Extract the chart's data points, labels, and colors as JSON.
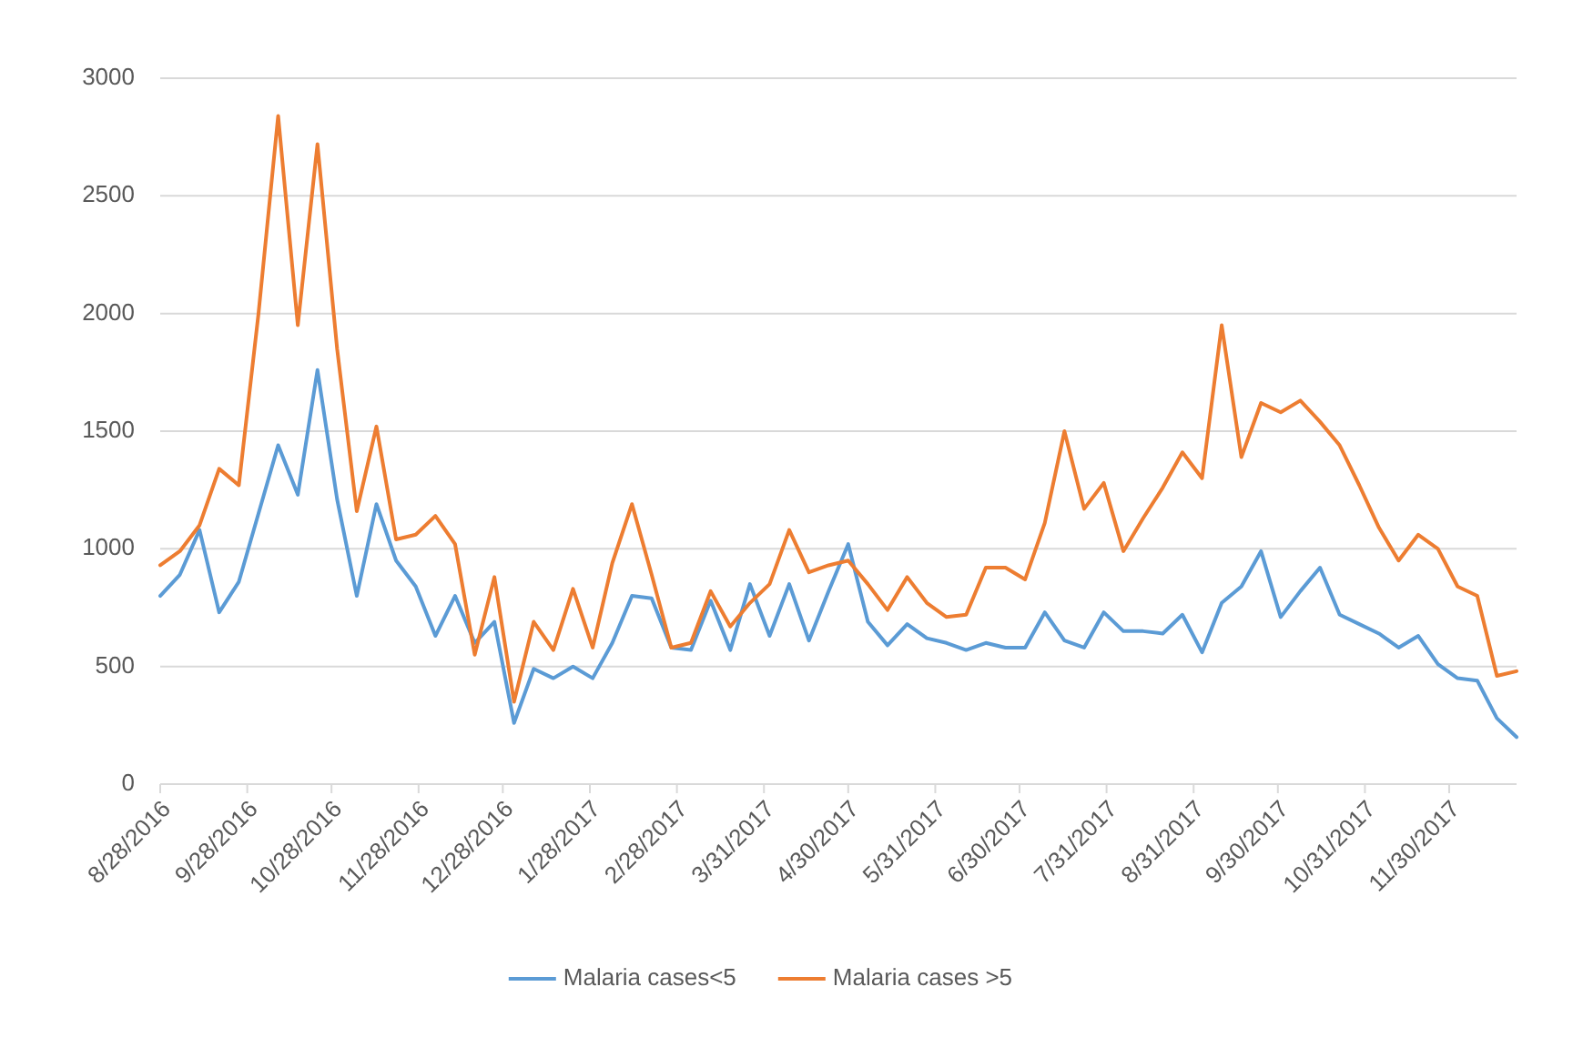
{
  "chart_data": {
    "type": "line",
    "x": [
      "2016-08-28",
      "2016-09-04",
      "2016-09-11",
      "2016-09-18",
      "2016-09-25",
      "2016-10-02",
      "2016-10-09",
      "2016-10-16",
      "2016-10-23",
      "2016-10-30",
      "2016-11-06",
      "2016-11-13",
      "2016-11-20",
      "2016-11-27",
      "2016-12-04",
      "2016-12-11",
      "2016-12-18",
      "2016-12-25",
      "2017-01-01",
      "2017-01-08",
      "2017-01-15",
      "2017-01-22",
      "2017-01-29",
      "2017-02-05",
      "2017-02-12",
      "2017-02-19",
      "2017-02-26",
      "2017-03-05",
      "2017-03-12",
      "2017-03-19",
      "2017-03-26",
      "2017-04-02",
      "2017-04-09",
      "2017-04-16",
      "2017-04-23",
      "2017-04-30",
      "2017-05-07",
      "2017-05-14",
      "2017-05-21",
      "2017-05-28",
      "2017-06-04",
      "2017-06-11",
      "2017-06-18",
      "2017-06-25",
      "2017-07-02",
      "2017-07-09",
      "2017-07-16",
      "2017-07-23",
      "2017-07-30",
      "2017-08-06",
      "2017-08-13",
      "2017-08-20",
      "2017-08-27",
      "2017-09-03",
      "2017-09-10",
      "2017-09-17",
      "2017-09-24",
      "2017-10-01",
      "2017-10-08",
      "2017-10-15",
      "2017-10-22",
      "2017-10-29",
      "2017-11-05",
      "2017-11-12",
      "2017-11-19",
      "2017-11-26",
      "2017-12-03",
      "2017-12-10",
      "2017-12-17",
      "2017-12-24"
    ],
    "series": [
      {
        "name": "Malaria cases<5",
        "color": "#5b9bd5",
        "values": [
          800,
          890,
          1080,
          730,
          860,
          1150,
          1440,
          1230,
          1760,
          1210,
          800,
          1190,
          950,
          840,
          630,
          800,
          600,
          690,
          260,
          490,
          450,
          500,
          450,
          600,
          800,
          790,
          580,
          570,
          780,
          570,
          850,
          630,
          850,
          610,
          820,
          1020,
          690,
          590,
          680,
          620,
          600,
          570,
          600,
          580,
          580,
          730,
          610,
          580,
          730,
          650,
          650,
          640,
          720,
          560,
          770,
          840,
          990,
          710,
          820,
          920,
          720,
          680,
          640,
          580,
          630,
          510,
          450,
          440,
          280,
          200
        ]
      },
      {
        "name": "Malaria cases >5",
        "color": "#ed7d31",
        "values": [
          930,
          990,
          1100,
          1340,
          1270,
          2000,
          2840,
          1950,
          2720,
          1850,
          1160,
          1520,
          1040,
          1060,
          1140,
          1020,
          550,
          880,
          350,
          690,
          570,
          830,
          580,
          940,
          1190,
          890,
          580,
          600,
          820,
          670,
          770,
          850,
          1080,
          900,
          930,
          950,
          850,
          740,
          880,
          770,
          710,
          720,
          920,
          920,
          870,
          1110,
          1500,
          1170,
          1280,
          990,
          1130,
          1260,
          1410,
          1300,
          1950,
          1390,
          1620,
          1580,
          1630,
          1540,
          1440,
          1270,
          1090,
          950,
          1060,
          1000,
          840,
          800,
          460,
          480
        ]
      }
    ],
    "xlim": [
      "2016-08-28",
      "2017-12-24"
    ],
    "xticks": [
      {
        "value": "2016-08-28",
        "label": "8/28/2016"
      },
      {
        "value": "2016-09-28",
        "label": "9/28/2016"
      },
      {
        "value": "2016-10-28",
        "label": "10/28/2016"
      },
      {
        "value": "2016-11-28",
        "label": "11/28/2016"
      },
      {
        "value": "2016-12-28",
        "label": "12/28/2016"
      },
      {
        "value": "2017-01-28",
        "label": "1/28/2017"
      },
      {
        "value": "2017-02-28",
        "label": "2/28/2017"
      },
      {
        "value": "2017-03-31",
        "label": "3/31/2017"
      },
      {
        "value": "2017-04-30",
        "label": "4/30/2017"
      },
      {
        "value": "2017-05-31",
        "label": "5/31/2017"
      },
      {
        "value": "2017-06-30",
        "label": "6/30/2017"
      },
      {
        "value": "2017-07-31",
        "label": "7/31/2017"
      },
      {
        "value": "2017-08-31",
        "label": "8/31/2017"
      },
      {
        "value": "2017-09-30",
        "label": "9/30/2017"
      },
      {
        "value": "2017-10-31",
        "label": "10/31/2017"
      },
      {
        "value": "2017-11-30",
        "label": "11/30/2017"
      }
    ],
    "ylim": [
      0,
      3000
    ],
    "yticks": [
      0,
      500,
      1000,
      1500,
      2000,
      2500,
      3000
    ],
    "grid": "y",
    "legend": "bottom"
  }
}
